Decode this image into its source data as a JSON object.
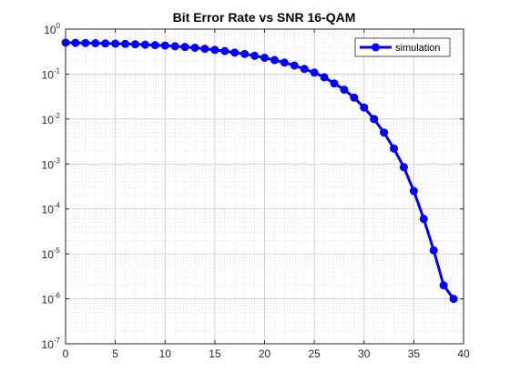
{
  "chart_data": {
    "type": "line",
    "title": "Bit Error Rate vs SNR 16-QAM",
    "xlabel": "",
    "ylabel": "",
    "xlim": [
      0,
      40
    ],
    "ylim": [
      1e-07,
      1
    ],
    "yscale": "log",
    "grid": true,
    "minor_grid": true,
    "legend_position": "top-right",
    "x_ticks": [
      "0",
      "5",
      "10",
      "15",
      "20",
      "25",
      "30",
      "35",
      "40"
    ],
    "y_ticks": [
      {
        "base": "10",
        "exp": "0",
        "value": 1
      },
      {
        "base": "10",
        "exp": "-1",
        "value": 0.1
      },
      {
        "base": "10",
        "exp": "-2",
        "value": 0.01
      },
      {
        "base": "10",
        "exp": "-3",
        "value": 0.001
      },
      {
        "base": "10",
        "exp": "-4",
        "value": 0.0001
      },
      {
        "base": "10",
        "exp": "-5",
        "value": 1e-05
      },
      {
        "base": "10",
        "exp": "-6",
        "value": 1e-06
      },
      {
        "base": "10",
        "exp": "-7",
        "value": 1e-07
      }
    ],
    "series": [
      {
        "name": "simulation",
        "color": "#0000ff",
        "x": [
          0,
          1,
          2,
          3,
          4,
          5,
          6,
          7,
          8,
          9,
          10,
          11,
          12,
          13,
          14,
          15,
          16,
          17,
          18,
          19,
          20,
          21,
          22,
          23,
          24,
          25,
          26,
          27,
          28,
          29,
          30,
          31,
          32,
          33,
          34,
          35,
          36,
          37,
          38,
          39
        ],
        "y": [
          0.5,
          0.495,
          0.49,
          0.485,
          0.48,
          0.475,
          0.468,
          0.46,
          0.45,
          0.44,
          0.43,
          0.415,
          0.4,
          0.385,
          0.365,
          0.345,
          0.325,
          0.3,
          0.28,
          0.255,
          0.23,
          0.205,
          0.18,
          0.155,
          0.13,
          0.108,
          0.085,
          0.062,
          0.045,
          0.03,
          0.018,
          0.01,
          0.005,
          0.0022,
          0.00085,
          0.00025,
          6e-05,
          1.2e-05,
          2e-06,
          1e-06
        ]
      }
    ]
  }
}
